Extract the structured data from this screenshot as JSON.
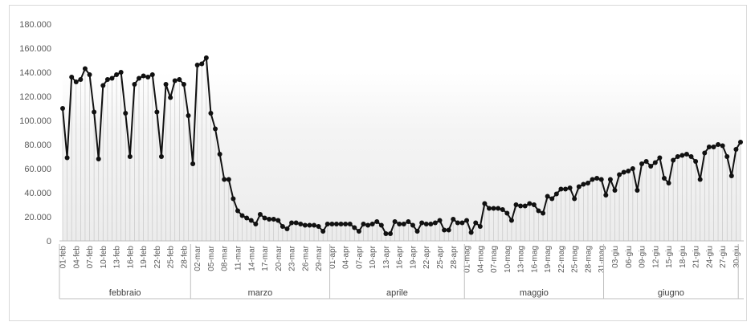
{
  "chart_data": {
    "type": "line",
    "title": "",
    "xlabel": "",
    "ylabel": "",
    "ylim": [
      0,
      180000
    ],
    "y_ticks": [
      "0",
      "20.000",
      "40.000",
      "60.000",
      "80.000",
      "100.000",
      "120.000",
      "140.000",
      "160.000",
      "180.000"
    ],
    "grid": false,
    "legend": "none",
    "colors": {
      "line": "#111111",
      "marker": "#111111",
      "droplines": "#c8c8c8",
      "shading": "#f4f4f4",
      "axis": "#bfbfbf"
    },
    "x_tick_labels": [
      "01-feb",
      "04-feb",
      "07-feb",
      "10-feb",
      "13-feb",
      "16-feb",
      "19-feb",
      "22-feb",
      "25-feb",
      "28-feb",
      "02-mar",
      "05-mar",
      "08-mar",
      "11-mar",
      "14-mar",
      "17-mar",
      "20-mar",
      "23-mar",
      "26-mar",
      "29-mar",
      "01-apr",
      "04-apr",
      "07-apr",
      "10-apr",
      "13-apr",
      "16-apr",
      "19-apr",
      "22-apr",
      "25-apr",
      "28-apr",
      "01-mag",
      "04-mag",
      "07-mag",
      "10-mag",
      "13-mag",
      "16-mag",
      "19-mag",
      "22-mag",
      "25-mag",
      "28-mag",
      "31-mag",
      "03-giu",
      "06-giu",
      "09-giu",
      "12-giu",
      "15-giu",
      "18-giu",
      "21-giu",
      "24-giu",
      "27-giu",
      "30-giu"
    ],
    "months": [
      {
        "name": "febbraio",
        "days": 29
      },
      {
        "name": "marzo",
        "days": 31
      },
      {
        "name": "aprile",
        "days": 30
      },
      {
        "name": "maggio",
        "days": 31
      },
      {
        "name": "giugno",
        "days": 30
      }
    ],
    "series": [
      {
        "values": [
          110000,
          69000,
          136000,
          132000,
          134000,
          143000,
          138000,
          107000,
          68000,
          129000,
          134000,
          135000,
          138000,
          140000,
          106000,
          70000,
          130000,
          135000,
          137000,
          136000,
          138000,
          107000,
          70000,
          130000,
          119000,
          133000,
          134000,
          130000,
          104000,
          64000,
          146000,
          147000,
          152000,
          106000,
          93000,
          72000,
          51000,
          51000,
          35000,
          25000,
          21000,
          19000,
          17000,
          14000,
          22000,
          19000,
          18000,
          18000,
          17000,
          12000,
          10000,
          15000,
          15000,
          14000,
          13000,
          13000,
          13000,
          12000,
          8000,
          14000,
          14000,
          14000,
          14000,
          14000,
          14000,
          11000,
          8000,
          14000,
          13000,
          14000,
          16000,
          13000,
          6000,
          6000,
          16000,
          14000,
          14000,
          16000,
          13000,
          8000,
          15000,
          14000,
          14000,
          15000,
          17000,
          9000,
          9000,
          18000,
          15000,
          15000,
          17000,
          7000,
          15000,
          12000,
          31000,
          27000,
          27000,
          27000,
          26000,
          23000,
          17000,
          30000,
          29000,
          29000,
          31000,
          30000,
          25000,
          23000,
          37000,
          35000,
          39000,
          43000,
          43000,
          44000,
          35000,
          45000,
          47000,
          48000,
          51000,
          52000,
          51000,
          38000,
          51000,
          42000,
          55000,
          57000,
          58000,
          60000,
          42000,
          64000,
          66000,
          62000,
          65000,
          69000,
          52000,
          48000,
          67000,
          70000,
          71000,
          72000,
          70000,
          66000,
          51000,
          73000,
          78000,
          78000,
          80000,
          79000,
          70000,
          54000,
          76000,
          82000
        ]
      }
    ]
  }
}
